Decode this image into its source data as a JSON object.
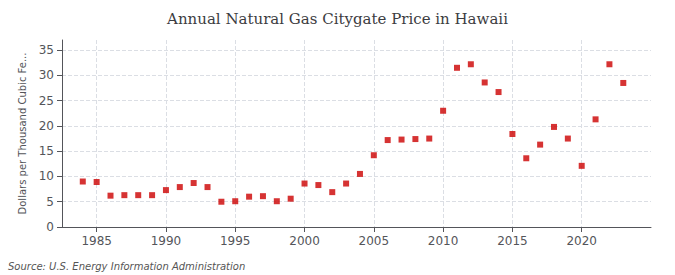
{
  "chart_data": {
    "type": "scatter",
    "title": "Annual Natural Gas Citygate Price in Hawaii",
    "ylabel": "Dollars per Thousand Cubic Fe...",
    "annotations": [
      "Source: U.S. Energy Information Administration"
    ],
    "x": [
      1984,
      1985,
      1986,
      1987,
      1988,
      1989,
      1990,
      1991,
      1992,
      1993,
      1994,
      1995,
      1996,
      1997,
      1998,
      1999,
      2000,
      2001,
      2002,
      2003,
      2004,
      2005,
      2006,
      2007,
      2008,
      2009,
      2010,
      2011,
      2012,
      2013,
      2014,
      2015,
      2016,
      2017,
      2018,
      2019,
      2020,
      2021,
      2022,
      2023
    ],
    "values": [
      9.0,
      8.9,
      6.2,
      6.3,
      6.3,
      6.3,
      7.3,
      7.9,
      8.7,
      7.9,
      5.0,
      5.1,
      6.0,
      6.1,
      5.1,
      5.6,
      8.6,
      8.3,
      6.9,
      8.6,
      10.5,
      14.2,
      17.2,
      17.3,
      17.4,
      17.5,
      23.0,
      31.5,
      32.2,
      28.6,
      26.7,
      18.4,
      13.6,
      16.3,
      19.8,
      17.5,
      12.1,
      21.3,
      32.2,
      28.5
    ],
    "color": "#cc0000",
    "marker": "square",
    "xlim": [
      1982.5,
      2025
    ],
    "ylim": [
      0,
      37
    ],
    "xticks": [
      1985,
      1990,
      1995,
      2000,
      2005,
      2010,
      2015,
      2020
    ],
    "yticks": [
      0,
      5,
      10,
      15,
      20,
      25,
      30,
      35
    ],
    "grid": true
  }
}
